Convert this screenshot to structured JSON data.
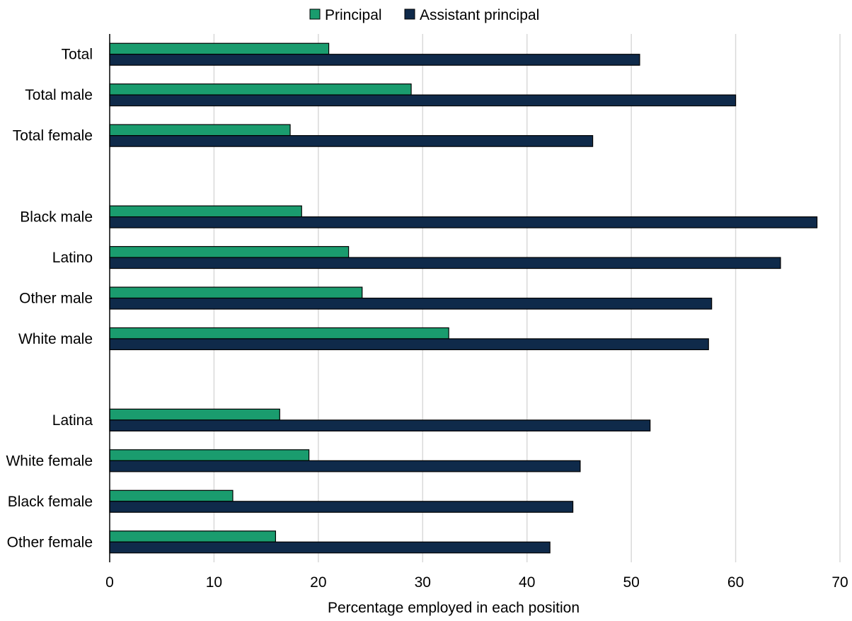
{
  "chart_data": {
    "type": "bar",
    "orientation": "horizontal",
    "title": "",
    "xlabel": "Percentage employed in each position",
    "ylabel": "",
    "xlim": [
      0,
      70
    ],
    "xticks": [
      0,
      10,
      20,
      30,
      40,
      50,
      60,
      70
    ],
    "grid": true,
    "legend_position": "top-center",
    "categories": [
      "Total",
      "Total male",
      "Total female",
      "",
      "Black male",
      "Latino",
      "Other male",
      "White male",
      "",
      "Latina",
      "White female",
      "Black female",
      "Other female"
    ],
    "series": [
      {
        "name": "Principal",
        "color": "#1a9c6e",
        "values": [
          21.0,
          28.9,
          17.3,
          null,
          18.4,
          22.9,
          24.2,
          32.5,
          null,
          16.3,
          19.1,
          11.8,
          15.9
        ]
      },
      {
        "name": "Assistant principal",
        "color": "#0f2a4a",
        "values": [
          50.8,
          60.0,
          46.3,
          null,
          67.8,
          64.3,
          57.7,
          57.4,
          null,
          51.8,
          45.1,
          44.4,
          42.2
        ]
      }
    ]
  }
}
